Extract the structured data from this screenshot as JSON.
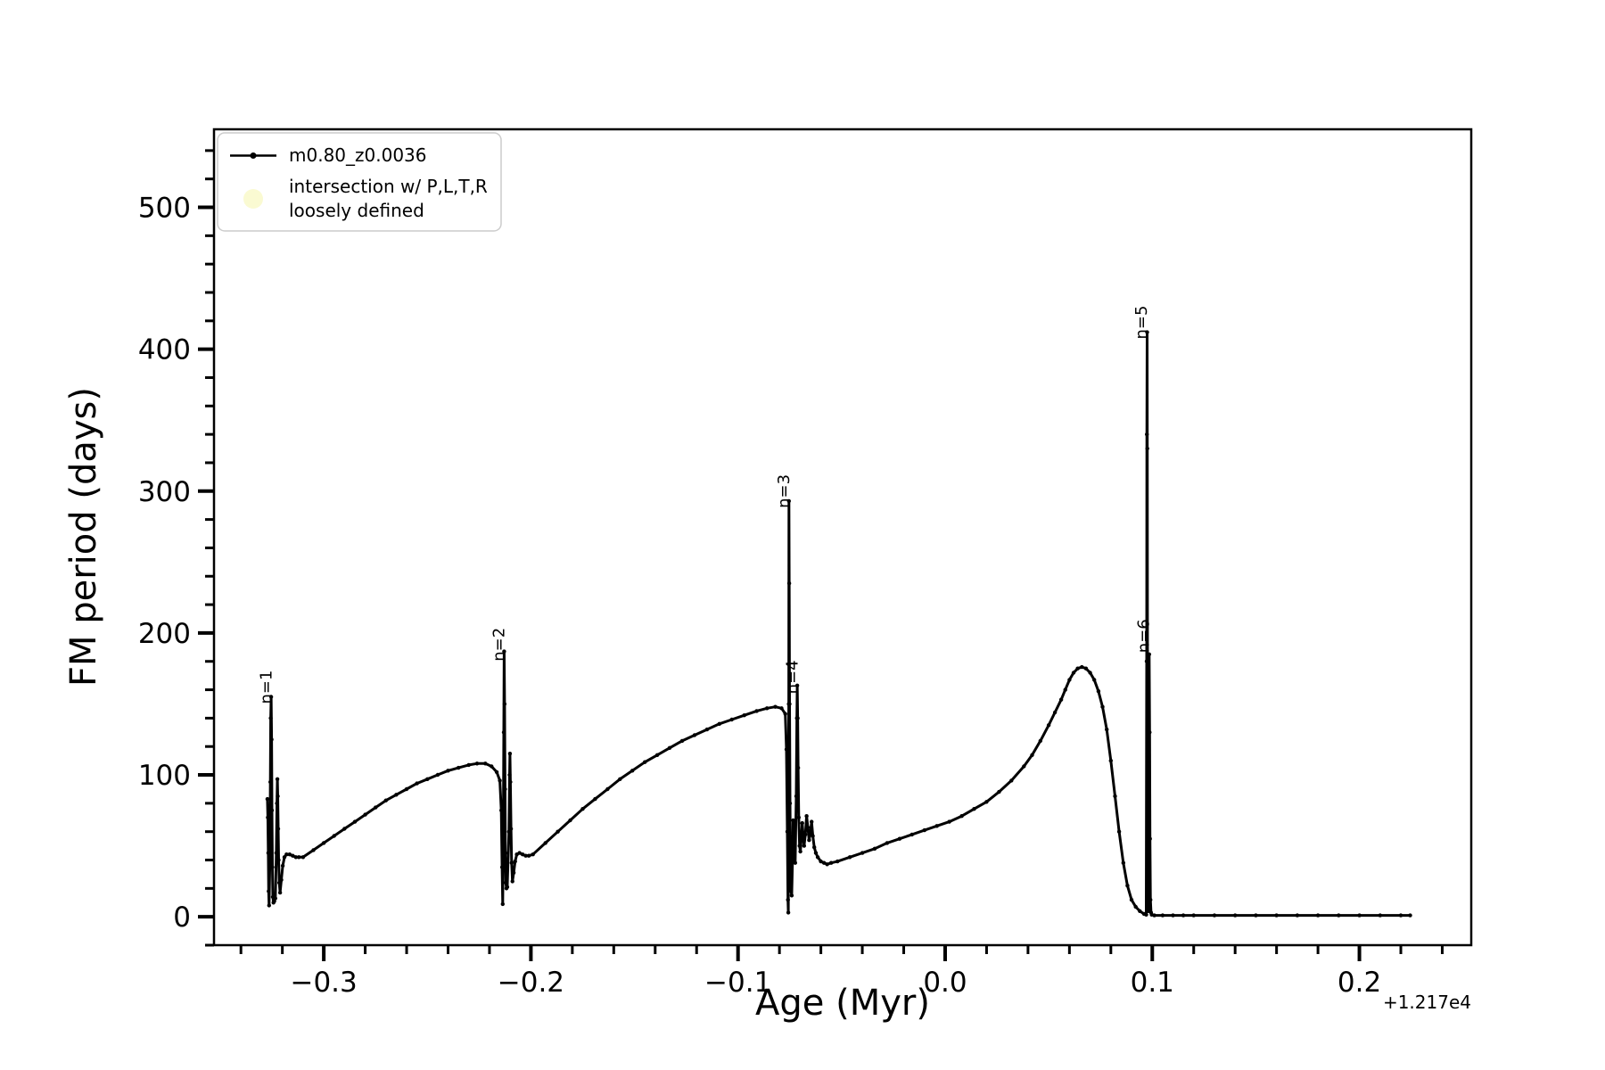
{
  "chart_data": {
    "type": "line",
    "title": "",
    "xlabel": "Age (Myr)",
    "ylabel": "FM period (days)",
    "x_offset_text": "+1.217e4",
    "xlim": [
      -0.353,
      0.254
    ],
    "ylim": [
      -20,
      555
    ],
    "grid": false,
    "x_minor_step": 0.02,
    "y_minor_step": 20,
    "x_ticks": [
      {
        "v": -0.3,
        "label": "−0.3"
      },
      {
        "v": -0.2,
        "label": "−0.2"
      },
      {
        "v": -0.1,
        "label": "−0.1"
      },
      {
        "v": 0.0,
        "label": "0.0"
      },
      {
        "v": 0.1,
        "label": "0.1"
      },
      {
        "v": 0.2,
        "label": "0.2"
      }
    ],
    "y_ticks": [
      {
        "v": 0,
        "label": "0"
      },
      {
        "v": 100,
        "label": "100"
      },
      {
        "v": 200,
        "label": "200"
      },
      {
        "v": 300,
        "label": "300"
      },
      {
        "v": 400,
        "label": "400"
      },
      {
        "v": 500,
        "label": "500"
      }
    ],
    "legend": {
      "position": "upper-left",
      "entries": [
        {
          "label_lines": [
            "m0.80_z0.0036"
          ],
          "marker": "line-with-dot",
          "color": "#000000"
        },
        {
          "label_lines": [
            "intersection w/ P,L,T,R",
            "loosely defined"
          ],
          "marker": "filled-circle",
          "color": "#fafad2"
        }
      ]
    },
    "annotations": [
      {
        "text": "n=1",
        "x": -0.3253,
        "y": 150,
        "rotation": -90
      },
      {
        "text": "n=2",
        "x": -0.2128,
        "y": 180,
        "rotation": -90
      },
      {
        "text": "n=3",
        "x": -0.0753,
        "y": 288,
        "rotation": -90
      },
      {
        "text": "n=4",
        "x": -0.0713,
        "y": 157,
        "rotation": -90
      },
      {
        "text": "n=5",
        "x": 0.0974,
        "y": 407,
        "rotation": -90
      },
      {
        "text": "n=6",
        "x": 0.0984,
        "y": 186,
        "rotation": -90
      }
    ],
    "series": [
      {
        "name": "m0.80_z0.0036",
        "color": "#000000",
        "marker": "point",
        "points": [
          [
            -0.3272,
            83
          ],
          [
            -0.327,
            70
          ],
          [
            -0.3268,
            45
          ],
          [
            -0.3266,
            18
          ],
          [
            -0.3264,
            8
          ],
          [
            -0.326,
            40
          ],
          [
            -0.3258,
            95
          ],
          [
            -0.3256,
            140
          ],
          [
            -0.3254,
            155
          ],
          [
            -0.3252,
            125
          ],
          [
            -0.325,
            75
          ],
          [
            -0.3248,
            35
          ],
          [
            -0.3246,
            14
          ],
          [
            -0.3243,
            10
          ],
          [
            -0.3239,
            11
          ],
          [
            -0.3234,
            13
          ],
          [
            -0.3229,
            45
          ],
          [
            -0.3226,
            80
          ],
          [
            -0.3224,
            97
          ],
          [
            -0.3222,
            85
          ],
          [
            -0.322,
            62
          ],
          [
            -0.3218,
            40
          ],
          [
            -0.3215,
            24
          ],
          [
            -0.3211,
            17
          ],
          [
            -0.3205,
            26
          ],
          [
            -0.3198,
            36
          ],
          [
            -0.319,
            42
          ],
          [
            -0.318,
            44
          ],
          [
            -0.3165,
            44
          ],
          [
            -0.315,
            43
          ],
          [
            -0.3135,
            42
          ],
          [
            -0.312,
            42
          ],
          [
            -0.31,
            42
          ],
          [
            -0.305,
            47
          ],
          [
            -0.3,
            52
          ],
          [
            -0.295,
            57
          ],
          [
            -0.29,
            62
          ],
          [
            -0.285,
            67
          ],
          [
            -0.28,
            72
          ],
          [
            -0.275,
            77
          ],
          [
            -0.27,
            82
          ],
          [
            -0.265,
            86
          ],
          [
            -0.26,
            90
          ],
          [
            -0.255,
            94
          ],
          [
            -0.25,
            97
          ],
          [
            -0.245,
            100
          ],
          [
            -0.24,
            103
          ],
          [
            -0.235,
            105
          ],
          [
            -0.23,
            107
          ],
          [
            -0.226,
            108
          ],
          [
            -0.222,
            108
          ],
          [
            -0.219,
            106
          ],
          [
            -0.2165,
            102
          ],
          [
            -0.215,
            96
          ],
          [
            -0.2143,
            75
          ],
          [
            -0.2139,
            35
          ],
          [
            -0.2136,
            9
          ],
          [
            -0.2133,
            60
          ],
          [
            -0.2131,
            130
          ],
          [
            -0.2129,
            187
          ],
          [
            -0.2127,
            150
          ],
          [
            -0.2125,
            90
          ],
          [
            -0.2123,
            45
          ],
          [
            -0.2121,
            24
          ],
          [
            -0.2118,
            20
          ],
          [
            -0.2114,
            21
          ],
          [
            -0.2106,
            60
          ],
          [
            -0.2103,
            100
          ],
          [
            -0.2101,
            115
          ],
          [
            -0.2099,
            95
          ],
          [
            -0.2096,
            62
          ],
          [
            -0.2093,
            38
          ],
          [
            -0.2089,
            25
          ],
          [
            -0.2083,
            31
          ],
          [
            -0.2076,
            39
          ],
          [
            -0.2068,
            44
          ],
          [
            -0.2055,
            45
          ],
          [
            -0.204,
            44
          ],
          [
            -0.2025,
            43
          ],
          [
            -0.201,
            43
          ],
          [
            -0.199,
            44
          ],
          [
            -0.193,
            52
          ],
          [
            -0.187,
            60
          ],
          [
            -0.181,
            68
          ],
          [
            -0.175,
            76
          ],
          [
            -0.169,
            83
          ],
          [
            -0.163,
            90
          ],
          [
            -0.157,
            97
          ],
          [
            -0.151,
            103
          ],
          [
            -0.145,
            109
          ],
          [
            -0.139,
            114
          ],
          [
            -0.133,
            119
          ],
          [
            -0.127,
            124
          ],
          [
            -0.121,
            128
          ],
          [
            -0.115,
            132
          ],
          [
            -0.109,
            136
          ],
          [
            -0.103,
            139
          ],
          [
            -0.097,
            142
          ],
          [
            -0.091,
            145
          ],
          [
            -0.086,
            147
          ],
          [
            -0.082,
            148
          ],
          [
            -0.079,
            147
          ],
          [
            -0.0772,
            143
          ],
          [
            -0.0766,
            118
          ],
          [
            -0.0762,
            60
          ],
          [
            -0.0759,
            12
          ],
          [
            -0.0757,
            3
          ],
          [
            -0.0755,
            150
          ],
          [
            -0.0754,
            293
          ],
          [
            -0.0753,
            235
          ],
          [
            -0.0751,
            150
          ],
          [
            -0.0749,
            80
          ],
          [
            -0.0747,
            38
          ],
          [
            -0.0744,
            18
          ],
          [
            -0.0741,
            15
          ],
          [
            -0.0737,
            40
          ],
          [
            -0.0734,
            68
          ],
          [
            -0.0731,
            58
          ],
          [
            -0.0728,
            42
          ],
          [
            -0.0724,
            38
          ],
          [
            -0.0719,
            85
          ],
          [
            -0.0716,
            140
          ],
          [
            -0.0714,
            163
          ],
          [
            -0.0712,
            140
          ],
          [
            -0.071,
            105
          ],
          [
            -0.0707,
            70
          ],
          [
            -0.0703,
            50
          ],
          [
            -0.0699,
            46
          ],
          [
            -0.0694,
            56
          ],
          [
            -0.069,
            66
          ],
          [
            -0.0686,
            59
          ],
          [
            -0.0681,
            50
          ],
          [
            -0.0675,
            58
          ],
          [
            -0.0669,
            71
          ],
          [
            -0.0663,
            63
          ],
          [
            -0.0657,
            54
          ],
          [
            -0.0651,
            59
          ],
          [
            -0.0645,
            67
          ],
          [
            -0.0639,
            57
          ],
          [
            -0.0632,
            49
          ],
          [
            -0.0624,
            45
          ],
          [
            -0.0615,
            42
          ],
          [
            -0.06,
            39
          ],
          [
            -0.0585,
            38
          ],
          [
            -0.057,
            37
          ],
          [
            -0.055,
            38
          ],
          [
            -0.052,
            39
          ],
          [
            -0.046,
            42
          ],
          [
            -0.04,
            45
          ],
          [
            -0.034,
            48
          ],
          [
            -0.028,
            52
          ],
          [
            -0.022,
            55
          ],
          [
            -0.016,
            58
          ],
          [
            -0.01,
            61
          ],
          [
            -0.004,
            64
          ],
          [
            0.002,
            67
          ],
          [
            0.008,
            71
          ],
          [
            0.014,
            76
          ],
          [
            0.02,
            81
          ],
          [
            0.026,
            88
          ],
          [
            0.032,
            96
          ],
          [
            0.038,
            106
          ],
          [
            0.042,
            114
          ],
          [
            0.046,
            124
          ],
          [
            0.05,
            135
          ],
          [
            0.053,
            144
          ],
          [
            0.056,
            153
          ],
          [
            0.058,
            160
          ],
          [
            0.06,
            167
          ],
          [
            0.062,
            172
          ],
          [
            0.064,
            175
          ],
          [
            0.066,
            176
          ],
          [
            0.068,
            175
          ],
          [
            0.07,
            172
          ],
          [
            0.072,
            167
          ],
          [
            0.074,
            159
          ],
          [
            0.076,
            148
          ],
          [
            0.078,
            132
          ],
          [
            0.08,
            110
          ],
          [
            0.082,
            85
          ],
          [
            0.084,
            60
          ],
          [
            0.086,
            38
          ],
          [
            0.088,
            22
          ],
          [
            0.09,
            12
          ],
          [
            0.092,
            7
          ],
          [
            0.094,
            4
          ],
          [
            0.096,
            2
          ],
          [
            0.0971,
            1.5
          ],
          [
            0.0973,
            180
          ],
          [
            0.0974,
            340
          ],
          [
            0.0975,
            412
          ],
          [
            0.0976,
            330
          ],
          [
            0.0977,
            180
          ],
          [
            0.0978,
            60
          ],
          [
            0.0979,
            10
          ],
          [
            0.0981,
            4
          ],
          [
            0.0983,
            90
          ],
          [
            0.0985,
            185
          ],
          [
            0.0987,
            130
          ],
          [
            0.0989,
            55
          ],
          [
            0.0991,
            12
          ],
          [
            0.0994,
            3
          ],
          [
            0.0997,
            1.5
          ],
          [
            0.101,
            1
          ],
          [
            0.105,
            1
          ],
          [
            0.11,
            1
          ],
          [
            0.115,
            1
          ],
          [
            0.12,
            1
          ],
          [
            0.13,
            1
          ],
          [
            0.14,
            1
          ],
          [
            0.15,
            1
          ],
          [
            0.16,
            1
          ],
          [
            0.17,
            1
          ],
          [
            0.18,
            1
          ],
          [
            0.19,
            1
          ],
          [
            0.2,
            1
          ],
          [
            0.21,
            1
          ],
          [
            0.22,
            1
          ],
          [
            0.2245,
            1
          ]
        ]
      }
    ]
  }
}
